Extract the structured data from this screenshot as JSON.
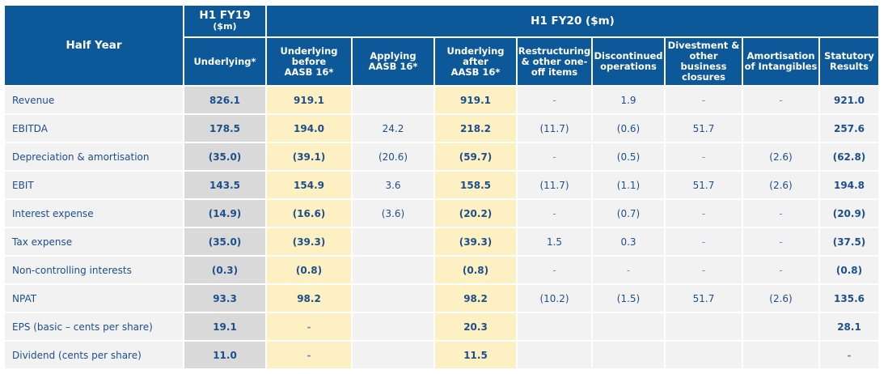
{
  "header": {
    "half_year": "Half Year",
    "h1fy19_line1": "H1 FY19",
    "h1fy19_line2": "($m)",
    "h1fy20": "H1 FY20 ($m)"
  },
  "subheaders": [
    [
      "Underlying*"
    ],
    [
      "Underlying",
      "before",
      "AASB 16*"
    ],
    [
      "Applying",
      "AASB 16*"
    ],
    [
      "Underlying",
      "after",
      "AASB 16*"
    ],
    [
      "Restructuring",
      "& other one-",
      "off items"
    ],
    [
      "Discontinued",
      "operations"
    ],
    [
      "Divestment &",
      "other business",
      "closures"
    ],
    [
      "Amortisation",
      "of Intangibles"
    ],
    [
      "Statutory",
      "Results"
    ]
  ],
  "rows": [
    {
      "label": "Revenue",
      "cells": [
        "826.1",
        "919.1",
        "",
        "919.1",
        "-",
        "1.9",
        "-",
        "-",
        "921.0"
      ]
    },
    {
      "label": "EBITDA",
      "cells": [
        "178.5",
        "194.0",
        "24.2",
        "218.2",
        "(11.7)",
        "(0.6)",
        "51.7",
        "",
        "257.6"
      ]
    },
    {
      "label": "Depreciation & amortisation",
      "cells": [
        "(35.0)",
        "(39.1)",
        "(20.6)",
        "(59.7)",
        "-",
        "(0.5)",
        "-",
        "(2.6)",
        "(62.8)"
      ]
    },
    {
      "label": "EBIT",
      "cells": [
        "143.5",
        "154.9",
        "3.6",
        "158.5",
        "(11.7)",
        "(1.1)",
        "51.7",
        "(2.6)",
        "194.8"
      ]
    },
    {
      "label": "Interest expense",
      "cells": [
        "(14.9)",
        "(16.6)",
        "(3.6)",
        "(20.2)",
        "-",
        "(0.7)",
        "-",
        "-",
        "(20.9)"
      ]
    },
    {
      "label": "Tax expense",
      "cells": [
        "(35.0)",
        "(39.3)",
        "",
        "(39.3)",
        "1.5",
        "0.3",
        "-",
        "-",
        "(37.5)"
      ]
    },
    {
      "label": "Non-controlling interests",
      "cells": [
        "(0.3)",
        "(0.8)",
        "",
        "(0.8)",
        "-",
        "-",
        "-",
        "-",
        "(0.8)"
      ]
    },
    {
      "label": "NPAT",
      "cells": [
        "93.3",
        "98.2",
        "",
        "98.2",
        "(10.2)",
        "(1.5)",
        "51.7",
        "(2.6)",
        "135.6"
      ]
    },
    {
      "label": "EPS (basic – cents per share)",
      "cells": [
        "19.1",
        "-",
        "",
        "20.3",
        "",
        "",
        "",
        "",
        "28.1"
      ]
    },
    {
      "label": "Dividend (cents per share)",
      "cells": [
        "11.0",
        "-",
        "",
        "11.5",
        "",
        "",
        "",
        "",
        "-"
      ]
    }
  ],
  "colors": {
    "header_bg": "#0d5898",
    "underlying_fy19_bg": "#d9d9d9",
    "highlight_bg": "#fdf0c2",
    "row_bg": "#f2f2f2",
    "text": "#1d4f8c"
  }
}
